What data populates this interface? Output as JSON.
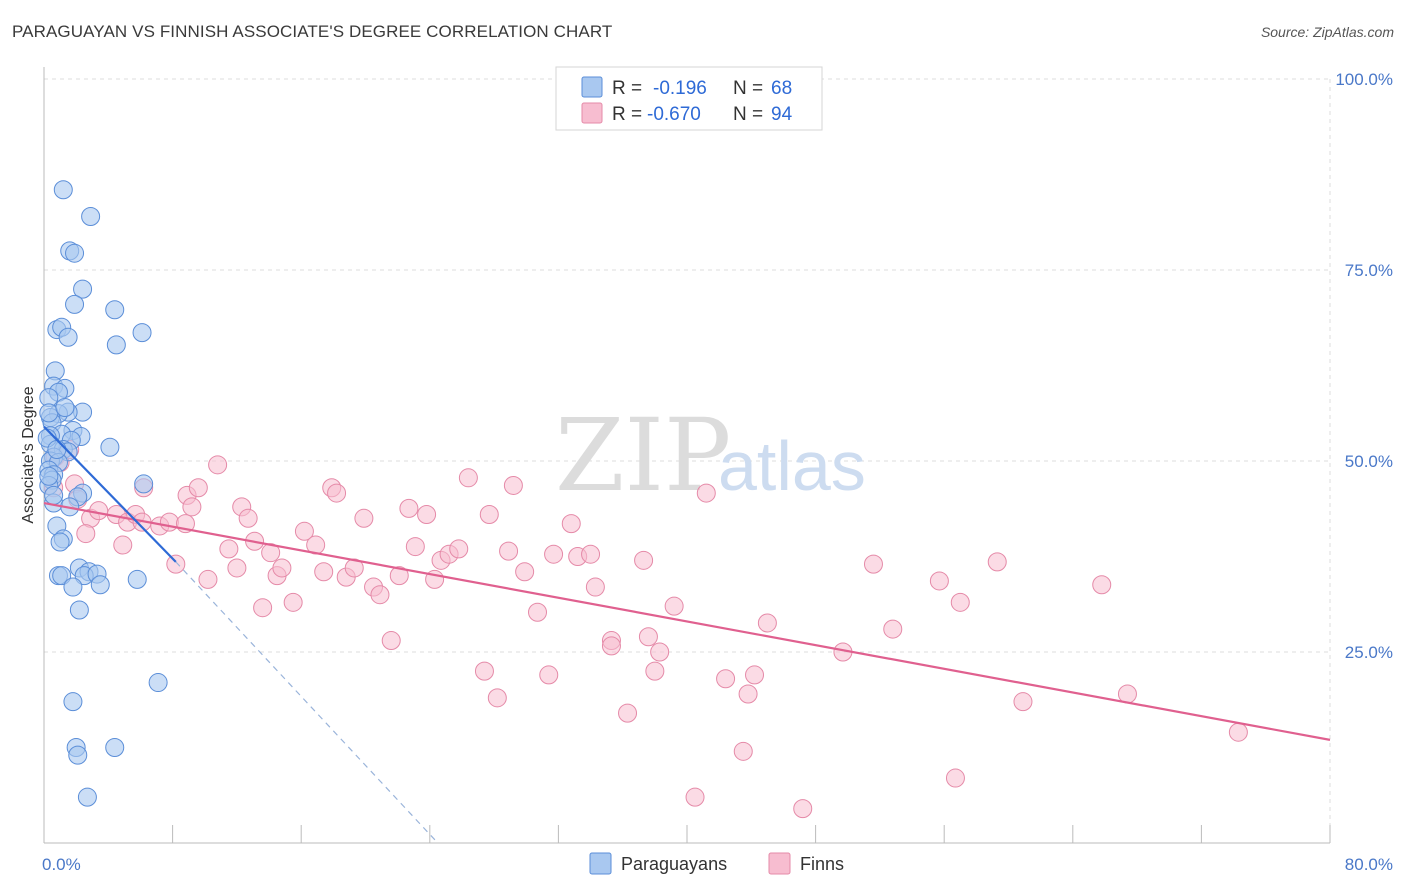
{
  "header": {
    "title": "PARAGUAYAN VS FINNISH ASSOCIATE'S DEGREE CORRELATION CHART",
    "source": "Source: ZipAtlas.com"
  },
  "watermark": {
    "zip": "ZIP",
    "atlas": "atlas"
  },
  "chart_data": {
    "type": "scatter",
    "title": "PARAGUAYAN VS FINNISH ASSOCIATE'S DEGREE CORRELATION CHART",
    "xlabel": "",
    "ylabel": "Associate's Degree",
    "xlim": [
      0,
      80
    ],
    "ylim": [
      0,
      100
    ],
    "x_tick_labels": {
      "min": "0.0%",
      "max": "80.0%"
    },
    "y_tick_labels": [
      "100.0%",
      "75.0%",
      "50.0%",
      "25.0%"
    ],
    "y_tick_values": [
      100,
      75,
      50,
      25
    ],
    "grid": true,
    "legend_top": [
      {
        "r_label": "R =",
        "r_value": "-0.196",
        "n_label": "N =",
        "n_value": "68"
      },
      {
        "r_label": "R =",
        "r_value": "-0.670",
        "n_label": "N =",
        "n_value": "94"
      }
    ],
    "colors": {
      "paraguayans_fill": "#a9c8f0",
      "paraguayans_stroke": "#5b8ed8",
      "paraguayans_line": "#2e6ad6",
      "finns_fill": "#f7bdd0",
      "finns_stroke": "#e58aa8",
      "finns_line": "#e0608f"
    },
    "series": [
      {
        "name": "Paraguayans",
        "trend": {
          "x0": 0.0,
          "y0": 54.5,
          "x1": 8.2,
          "y1": 36.8,
          "dash_x1": 24.5,
          "dash_y1": 0.0
        },
        "points": [
          [
            1.2,
            85.5
          ],
          [
            2.9,
            82.0
          ],
          [
            1.6,
            77.5
          ],
          [
            1.9,
            77.2
          ],
          [
            2.4,
            72.5
          ],
          [
            1.9,
            70.5
          ],
          [
            4.4,
            69.8
          ],
          [
            0.8,
            67.2
          ],
          [
            1.1,
            67.5
          ],
          [
            6.1,
            66.8
          ],
          [
            1.5,
            66.2
          ],
          [
            4.5,
            65.2
          ],
          [
            0.7,
            61.8
          ],
          [
            0.6,
            59.8
          ],
          [
            1.3,
            59.5
          ],
          [
            0.9,
            59.0
          ],
          [
            0.3,
            58.3
          ],
          [
            2.4,
            56.4
          ],
          [
            1.5,
            56.4
          ],
          [
            0.9,
            56.2
          ],
          [
            0.4,
            55.7
          ],
          [
            0.5,
            55.0
          ],
          [
            1.8,
            54.0
          ],
          [
            1.1,
            53.5
          ],
          [
            0.4,
            53.3
          ],
          [
            2.3,
            53.2
          ],
          [
            1.7,
            52.7
          ],
          [
            0.4,
            52.2
          ],
          [
            4.1,
            51.8
          ],
          [
            1.2,
            51.5
          ],
          [
            1.5,
            51.2
          ],
          [
            0.6,
            50.5
          ],
          [
            0.4,
            50.0
          ],
          [
            0.9,
            49.8
          ],
          [
            0.3,
            48.8
          ],
          [
            0.6,
            48.2
          ],
          [
            0.5,
            47.5
          ],
          [
            6.2,
            47.0
          ],
          [
            0.3,
            46.8
          ],
          [
            2.4,
            45.8
          ],
          [
            2.1,
            45.3
          ],
          [
            0.6,
            44.5
          ],
          [
            1.6,
            44.0
          ],
          [
            0.8,
            41.5
          ],
          [
            1.2,
            39.8
          ],
          [
            1.0,
            39.4
          ],
          [
            2.2,
            36.0
          ],
          [
            0.9,
            35.0
          ],
          [
            2.8,
            35.5
          ],
          [
            1.1,
            35.0
          ],
          [
            2.5,
            35.0
          ],
          [
            3.3,
            35.2
          ],
          [
            5.8,
            34.5
          ],
          [
            1.8,
            33.5
          ],
          [
            3.5,
            33.8
          ],
          [
            2.2,
            30.5
          ],
          [
            7.1,
            21.0
          ],
          [
            1.8,
            18.5
          ],
          [
            2.0,
            12.5
          ],
          [
            4.4,
            12.5
          ],
          [
            2.1,
            11.5
          ],
          [
            2.7,
            6.0
          ],
          [
            0.2,
            53.0
          ],
          [
            0.3,
            48.0
          ],
          [
            0.6,
            45.5
          ],
          [
            0.8,
            51.5
          ],
          [
            0.3,
            56.3
          ],
          [
            1.3,
            57.0
          ]
        ]
      },
      {
        "name": "Finns",
        "trend": {
          "x0": 0.0,
          "y0": 44.5,
          "x1": 80.0,
          "y1": 13.5
        },
        "points": [
          [
            0.7,
            50.5
          ],
          [
            1.0,
            49.8
          ],
          [
            1.6,
            51.5
          ],
          [
            0.6,
            46.5
          ],
          [
            1.9,
            47.0
          ],
          [
            2.1,
            45.0
          ],
          [
            2.9,
            42.5
          ],
          [
            2.6,
            40.5
          ],
          [
            3.4,
            43.5
          ],
          [
            4.5,
            43.0
          ],
          [
            4.9,
            39.0
          ],
          [
            5.2,
            42.0
          ],
          [
            5.7,
            43.0
          ],
          [
            6.2,
            46.5
          ],
          [
            6.1,
            42.0
          ],
          [
            7.2,
            41.5
          ],
          [
            7.8,
            42.0
          ],
          [
            8.2,
            36.5
          ],
          [
            8.8,
            41.8
          ],
          [
            8.9,
            45.5
          ],
          [
            9.2,
            44.0
          ],
          [
            9.6,
            46.5
          ],
          [
            10.2,
            34.5
          ],
          [
            10.8,
            49.5
          ],
          [
            11.5,
            38.5
          ],
          [
            12.0,
            36.0
          ],
          [
            12.3,
            44.0
          ],
          [
            12.7,
            42.5
          ],
          [
            13.1,
            39.5
          ],
          [
            13.6,
            30.8
          ],
          [
            14.1,
            38.0
          ],
          [
            14.5,
            35.0
          ],
          [
            14.8,
            36.0
          ],
          [
            15.5,
            31.5
          ],
          [
            16.2,
            40.8
          ],
          [
            16.9,
            39.0
          ],
          [
            17.4,
            35.5
          ],
          [
            17.9,
            46.5
          ],
          [
            18.2,
            45.8
          ],
          [
            18.8,
            34.8
          ],
          [
            19.3,
            36.0
          ],
          [
            19.9,
            42.5
          ],
          [
            20.5,
            33.5
          ],
          [
            20.9,
            32.5
          ],
          [
            21.6,
            26.5
          ],
          [
            22.1,
            35.0
          ],
          [
            22.7,
            43.8
          ],
          [
            23.1,
            38.8
          ],
          [
            23.8,
            43.0
          ],
          [
            24.3,
            34.5
          ],
          [
            24.7,
            37.0
          ],
          [
            25.2,
            37.8
          ],
          [
            25.8,
            38.5
          ],
          [
            26.4,
            47.8
          ],
          [
            27.4,
            22.5
          ],
          [
            27.7,
            43.0
          ],
          [
            28.2,
            19.0
          ],
          [
            28.9,
            38.2
          ],
          [
            29.2,
            46.8
          ],
          [
            29.9,
            35.5
          ],
          [
            30.7,
            30.2
          ],
          [
            31.4,
            22.0
          ],
          [
            31.7,
            37.8
          ],
          [
            32.8,
            41.8
          ],
          [
            33.2,
            37.5
          ],
          [
            34.0,
            37.8
          ],
          [
            34.3,
            33.5
          ],
          [
            35.3,
            26.5
          ],
          [
            35.3,
            25.8
          ],
          [
            36.3,
            17.0
          ],
          [
            37.3,
            37.0
          ],
          [
            37.6,
            27.0
          ],
          [
            38.0,
            22.5
          ],
          [
            38.3,
            25.0
          ],
          [
            39.2,
            31.0
          ],
          [
            40.5,
            6.0
          ],
          [
            41.2,
            45.8
          ],
          [
            42.4,
            21.5
          ],
          [
            43.5,
            12.0
          ],
          [
            43.8,
            19.5
          ],
          [
            44.2,
            22.0
          ],
          [
            45.0,
            28.8
          ],
          [
            47.2,
            4.5
          ],
          [
            49.7,
            25.0
          ],
          [
            51.6,
            36.5
          ],
          [
            52.8,
            28.0
          ],
          [
            55.7,
            34.3
          ],
          [
            56.7,
            8.5
          ],
          [
            57.0,
            31.5
          ],
          [
            59.3,
            36.8
          ],
          [
            60.9,
            18.5
          ],
          [
            65.8,
            33.8
          ],
          [
            67.4,
            19.5
          ],
          [
            74.3,
            14.5
          ]
        ]
      }
    ]
  },
  "legend_bottom": {
    "paraguayans": "Paraguayans",
    "finns": "Finns"
  }
}
